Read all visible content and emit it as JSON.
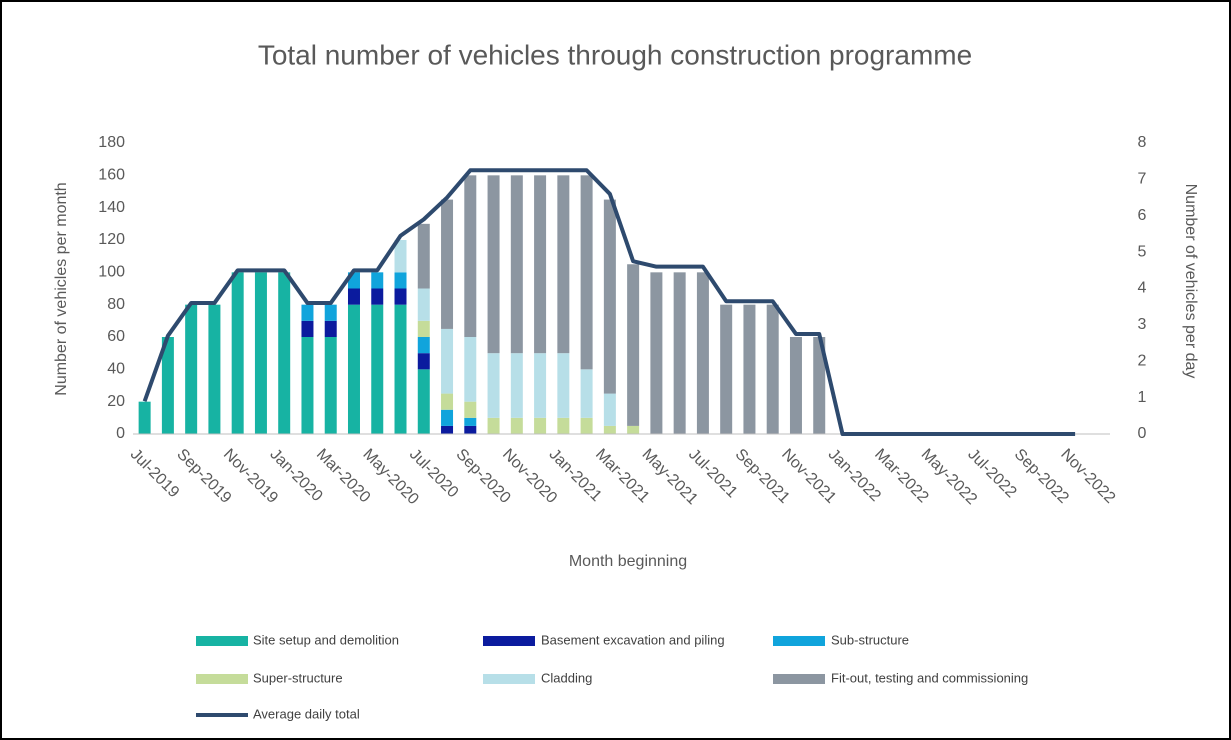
{
  "chart_data": {
    "type": "bar",
    "stacked": true,
    "title": "Total number of vehicles through construction programme",
    "x_label": "Month beginning",
    "y_label": "Number of vehicles per month",
    "y2_label": "Number of vehicles per day",
    "categories": [
      "Jul-2019",
      null,
      "Sep-2019",
      null,
      "Nov-2019",
      null,
      "Jan-2020",
      null,
      "Mar-2020",
      null,
      "May-2020",
      null,
      "Jul-2020",
      null,
      "Sep-2020",
      null,
      "Nov-2020",
      null,
      "Jan-2021",
      null,
      "Mar-2021",
      null,
      "May-2021",
      null,
      "Jul-2021",
      null,
      "Sep-2021",
      null,
      "Nov-2021",
      null,
      "Jan-2022",
      null,
      "Mar-2022",
      null,
      "May-2022",
      null,
      "Jul-2022",
      null,
      "Sep-2022",
      null,
      "Nov-2022",
      null
    ],
    "ylim": [
      0,
      180
    ],
    "yticks": [
      0,
      20,
      40,
      60,
      80,
      100,
      120,
      140,
      160,
      180
    ],
    "y2lim": [
      0,
      8
    ],
    "y2ticks": [
      0,
      1,
      2,
      3,
      4,
      5,
      6,
      7,
      8
    ],
    "grid": false,
    "series": [
      {
        "name": "Site setup and demolition",
        "color": "#17b3a3",
        "values": [
          20,
          60,
          80,
          80,
          100,
          100,
          100,
          60,
          60,
          80,
          80,
          80,
          40,
          0,
          0,
          0,
          0,
          0,
          0,
          0,
          0,
          0,
          0,
          0,
          0,
          0,
          0,
          0,
          0,
          0,
          0,
          0,
          0,
          0,
          0,
          0,
          0,
          0,
          0,
          0,
          0,
          0
        ]
      },
      {
        "name": "Basement excavation and piling",
        "color": "#0b1b9e",
        "values": [
          0,
          0,
          0,
          0,
          0,
          0,
          0,
          10,
          10,
          10,
          10,
          10,
          10,
          5,
          5,
          0,
          0,
          0,
          0,
          0,
          0,
          0,
          0,
          0,
          0,
          0,
          0,
          0,
          0,
          0,
          0,
          0,
          0,
          0,
          0,
          0,
          0,
          0,
          0,
          0,
          0,
          0
        ]
      },
      {
        "name": "Sub-structure",
        "color": "#10a4dc",
        "values": [
          0,
          0,
          0,
          0,
          0,
          0,
          0,
          10,
          10,
          10,
          10,
          10,
          10,
          10,
          5,
          0,
          0,
          0,
          0,
          0,
          0,
          0,
          0,
          0,
          0,
          0,
          0,
          0,
          0,
          0,
          0,
          0,
          0,
          0,
          0,
          0,
          0,
          0,
          0,
          0,
          0,
          0
        ]
      },
      {
        "name": "Super-structure",
        "color": "#c5dc9a",
        "values": [
          0,
          0,
          0,
          0,
          0,
          0,
          0,
          0,
          0,
          0,
          0,
          0,
          10,
          10,
          10,
          10,
          10,
          10,
          10,
          10,
          5,
          5,
          0,
          0,
          0,
          0,
          0,
          0,
          0,
          0,
          0,
          0,
          0,
          0,
          0,
          0,
          0,
          0,
          0,
          0,
          0,
          0
        ]
      },
      {
        "name": "Cladding",
        "color": "#b7dfe8",
        "values": [
          0,
          0,
          0,
          0,
          0,
          0,
          0,
          0,
          0,
          0,
          0,
          20,
          20,
          40,
          40,
          40,
          40,
          40,
          40,
          30,
          20,
          0,
          0,
          0,
          0,
          0,
          0,
          0,
          0,
          0,
          0,
          0,
          0,
          0,
          0,
          0,
          0,
          0,
          0,
          0,
          0,
          0
        ]
      },
      {
        "name": "Fit-out, testing and commissioning",
        "color": "#8c96a1",
        "values": [
          0,
          0,
          0,
          0,
          0,
          0,
          0,
          0,
          0,
          0,
          0,
          0,
          40,
          80,
          100,
          110,
          110,
          110,
          110,
          120,
          120,
          100,
          100,
          100,
          100,
          80,
          80,
          80,
          60,
          60,
          0,
          0,
          0,
          0,
          0,
          0,
          0,
          0,
          0,
          0,
          0,
          0
        ]
      },
      {
        "name": "Average daily total",
        "color": "#2e4a6e",
        "type": "line",
        "axis": "y2",
        "values": [
          0.9,
          2.7,
          3.6,
          3.6,
          4.5,
          4.5,
          4.5,
          3.6,
          3.6,
          4.5,
          4.5,
          5.45,
          5.9,
          6.5,
          7.25,
          7.25,
          7.25,
          7.25,
          7.25,
          7.25,
          6.6,
          4.75,
          4.6,
          4.6,
          4.6,
          3.65,
          3.65,
          3.65,
          2.75,
          2.75,
          0,
          0,
          0,
          0,
          0,
          0,
          0,
          0,
          0,
          0,
          0,
          null
        ]
      }
    ]
  }
}
